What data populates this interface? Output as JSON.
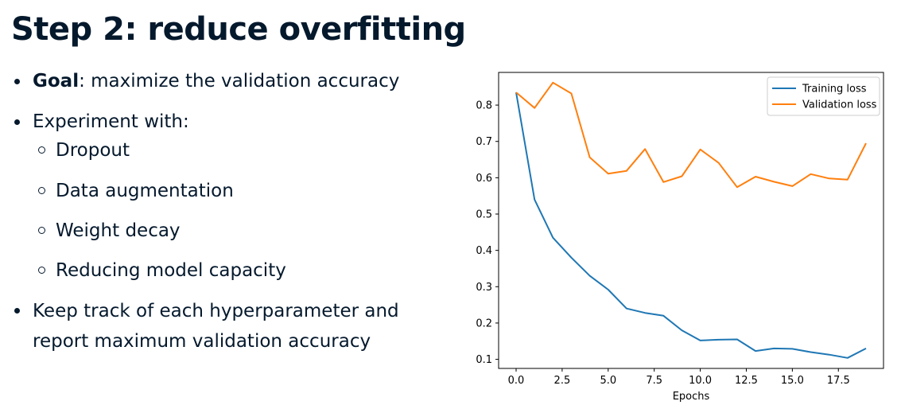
{
  "slide": {
    "title": "Step 2: reduce overfitting",
    "bullets": {
      "goal_label": "Goal",
      "goal_text": ": maximize the validation accuracy",
      "experiment": "Experiment with:",
      "sub_items": [
        "Dropout",
        "Data augmentation",
        "Weight decay",
        "Reducing model capacity"
      ],
      "keep_track_line1": "Keep track of each hyperparameter and",
      "keep_track_line2": "report maximum validation accuracy"
    }
  },
  "chart_data": {
    "type": "line",
    "title": "",
    "xlabel": "Epochs",
    "ylabel": "",
    "xlim": [
      -0.95,
      19.95
    ],
    "ylim": [
      0.075,
      0.89
    ],
    "xticks": [
      0.0,
      2.5,
      5.0,
      7.5,
      10.0,
      12.5,
      15.0,
      17.5
    ],
    "xtick_labels": [
      "0.0",
      "2.5",
      "5.0",
      "7.5",
      "10.0",
      "12.5",
      "15.0",
      "17.5"
    ],
    "yticks": [
      0.1,
      0.2,
      0.3,
      0.4,
      0.5,
      0.6,
      0.7,
      0.8
    ],
    "ytick_labels": [
      "0.1",
      "0.2",
      "0.3",
      "0.4",
      "0.5",
      "0.6",
      "0.7",
      "0.8"
    ],
    "grid": false,
    "legend_position": "upper right",
    "x": [
      0,
      1,
      2,
      3,
      4,
      5,
      6,
      7,
      8,
      9,
      10,
      11,
      12,
      13,
      14,
      15,
      16,
      17,
      18,
      19
    ],
    "series": [
      {
        "name": "Training loss",
        "color": "#1f77b4",
        "values": [
          0.835,
          0.54,
          0.435,
          0.38,
          0.33,
          0.292,
          0.24,
          0.228,
          0.22,
          0.18,
          0.152,
          0.154,
          0.155,
          0.123,
          0.13,
          0.129,
          0.12,
          0.113,
          0.104,
          0.13
        ]
      },
      {
        "name": "Validation loss",
        "color": "#ff7f0e",
        "values": [
          0.835,
          0.792,
          0.862,
          0.832,
          0.656,
          0.611,
          0.619,
          0.679,
          0.588,
          0.604,
          0.678,
          0.641,
          0.574,
          0.603,
          0.589,
          0.577,
          0.61,
          0.598,
          0.595,
          0.695
        ]
      }
    ]
  }
}
